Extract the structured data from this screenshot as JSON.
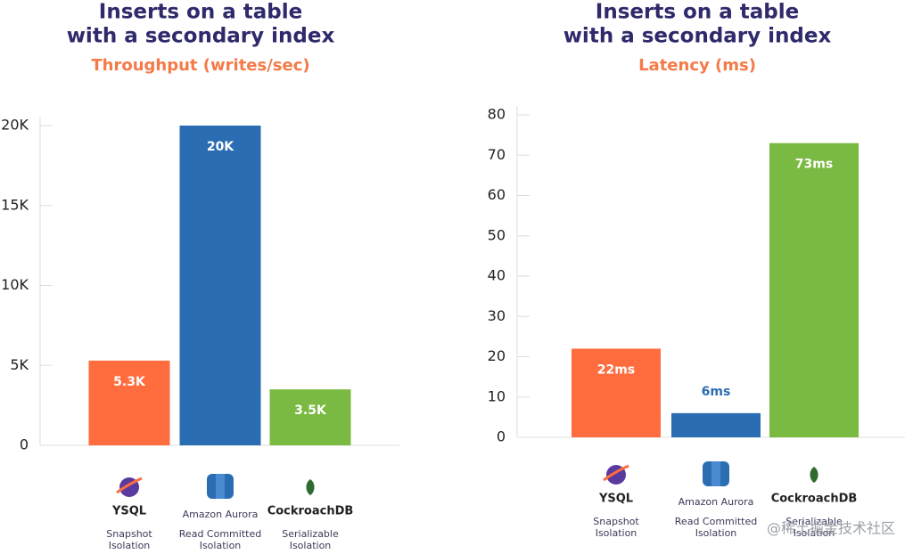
{
  "chart_data": [
    {
      "type": "bar",
      "title": [
        "Inserts on a table",
        "with a secondary index"
      ],
      "subtitle": "Throughput (writes/sec)",
      "categories": [
        "YSQL",
        "Amazon Aurora",
        "CockroachDB"
      ],
      "isolation": [
        [
          "Snapshot",
          "Isolation"
        ],
        [
          "Read Committed",
          "Isolation"
        ],
        [
          "Serializable",
          "Isolation"
        ]
      ],
      "values": [
        5300,
        20000,
        3500
      ],
      "value_labels": [
        "5.3K",
        "20K",
        "3.5K"
      ],
      "colors": [
        "#ff6d3f",
        "#2b6db3",
        "#7aba42"
      ],
      "ylim": [
        0,
        20000
      ],
      "yticks": [
        0,
        {
          "value": 5000,
          "label": "5K"
        },
        {
          "value": 10000,
          "label": "10K"
        },
        {
          "value": 15000,
          "label": "15K"
        },
        {
          "value": 20000,
          "label": "20K"
        }
      ]
    },
    {
      "type": "bar",
      "title": [
        "Inserts on a table",
        "with a secondary index"
      ],
      "subtitle": "Latency (ms)",
      "categories": [
        "YSQL",
        "Amazon Aurora",
        "CockroachDB"
      ],
      "isolation": [
        [
          "Snapshot",
          "Isolation"
        ],
        [
          "Read Committed",
          "Isolation"
        ],
        [
          "Serializable",
          "Isolation"
        ]
      ],
      "values": [
        22,
        6,
        73
      ],
      "value_labels": [
        "22ms",
        "6ms",
        "73ms"
      ],
      "colors": [
        "#ff6d3f",
        "#2b6db3",
        "#7aba42"
      ],
      "ylim": [
        0,
        80
      ],
      "yticks": [
        0,
        10,
        20,
        30,
        40,
        50,
        60,
        70,
        80
      ]
    }
  ],
  "watermark": "@稀土掘金技术社区"
}
